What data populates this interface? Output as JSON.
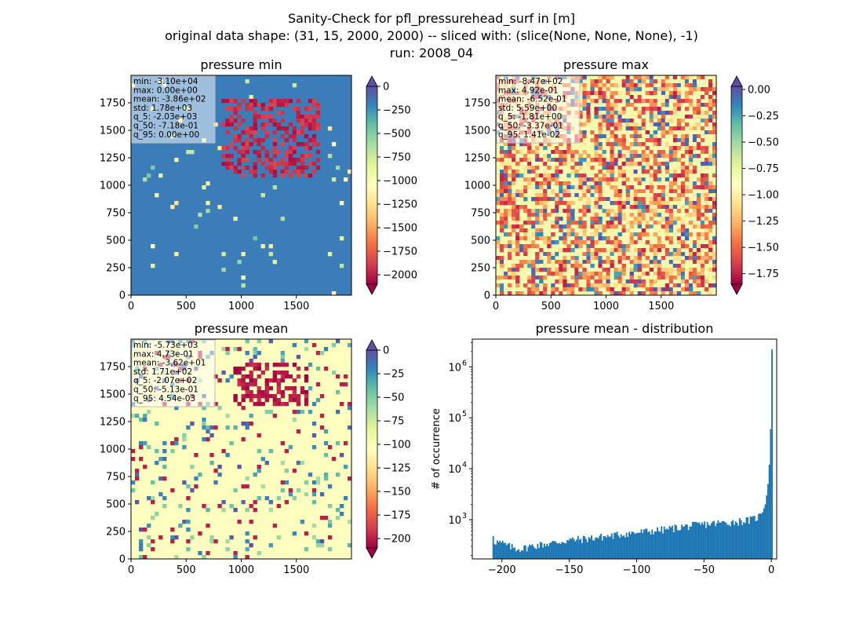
{
  "figure": {
    "title_lines": [
      "Sanity-Check for pfl_pressurehead_surf in [m]",
      "original data shape: (31, 15, 2000, 2000) -- sliced with: (slice(None, None, None), -1)",
      "run: 2008_04"
    ]
  },
  "chart_data": [
    {
      "type": "heatmap",
      "title": "pressure min",
      "colormap": "Spectral",
      "extent": [
        0,
        2000,
        0,
        2000
      ],
      "x_ticks": [
        0,
        500,
        1000,
        1500
      ],
      "y_ticks": [
        0,
        250,
        500,
        750,
        1000,
        1250,
        1500,
        1750
      ],
      "colorbar": {
        "range": [
          -2100,
          0
        ],
        "ticks": [
          0,
          -250,
          -500,
          -750,
          -1000,
          -1250,
          -1500,
          -1750,
          -2000
        ],
        "extend": "both"
      },
      "stats": [
        "min: -3.10e+04",
        "max: 0.00e+00",
        "mean: -3.86e+02",
        "std: 1.78e+03",
        "q_5: -2.03e+03",
        "q_50: -7.18e-01",
        "q_95: 0.00e+00"
      ]
    },
    {
      "type": "heatmap",
      "title": "pressure max",
      "colormap": "Spectral",
      "extent": [
        0,
        2000,
        0,
        2000
      ],
      "x_ticks": [
        0,
        500,
        1000,
        1500
      ],
      "y_ticks": [
        0,
        250,
        500,
        750,
        1000,
        1250,
        1500,
        1750
      ],
      "colorbar": {
        "range": [
          -1.85,
          0.03
        ],
        "ticks": [
          "0.00",
          "-0.25",
          "-0.50",
          "-0.75",
          "-1.00",
          "-1.25",
          "-1.50",
          "-1.75"
        ],
        "tick_values": [
          0,
          -0.25,
          -0.5,
          -0.75,
          -1.0,
          -1.25,
          -1.5,
          -1.75
        ],
        "extend": "both"
      },
      "stats": [
        "min: -8.47e+02",
        "max: 4.92e-01",
        "mean: -6.52e-01",
        "std: 5.59e+00",
        "q_5: -1.81e+00",
        "q_50: -3.37e-01",
        "q_95: 1.41e-02"
      ]
    },
    {
      "type": "heatmap",
      "title": "pressure mean",
      "colormap": "Spectral",
      "extent": [
        0,
        2000,
        0,
        2000
      ],
      "x_ticks": [
        0,
        500,
        1000,
        1500
      ],
      "y_ticks": [
        0,
        250,
        500,
        750,
        1000,
        1250,
        1500,
        1750
      ],
      "colorbar": {
        "range": [
          -210,
          0
        ],
        "ticks": [
          0,
          -25,
          -50,
          -75,
          -100,
          -125,
          -150,
          -175,
          -200
        ],
        "extend": "both"
      },
      "stats": [
        "min: -5.73e+03",
        "max: 4.73e-01",
        "mean: -3.62e+01",
        "std: 1.71e+02",
        "q_5: -2.07e+02",
        "q_50: -5.13e-01",
        "q_95: 4.54e-03"
      ]
    },
    {
      "type": "bar",
      "subtype": "histogram",
      "title": "pressure mean - distribution",
      "xlabel": "",
      "ylabel": "# of occurrence",
      "xlim": [
        -222,
        4
      ],
      "ylim": [
        170,
        3500000
      ],
      "yscale": "log",
      "x_ticks": [
        -200,
        -150,
        -100,
        -50,
        0
      ],
      "y_ticks": [
        1000,
        10000,
        100000,
        1000000
      ],
      "y_tick_labels": [
        "10",
        "10",
        "10",
        "10"
      ],
      "y_tick_exponents": [
        "3",
        "4",
        "5",
        "6"
      ],
      "bar_color": "#1f77b4",
      "bin_width": 1,
      "bins_start": -207,
      "anchors": [
        [
          -207,
          520
        ],
        [
          -206,
          380
        ],
        [
          -200,
          340
        ],
        [
          -195,
          300
        ],
        [
          -190,
          275
        ],
        [
          -185,
          270
        ],
        [
          -180,
          300
        ],
        [
          -170,
          330
        ],
        [
          -160,
          360
        ],
        [
          -150,
          400
        ],
        [
          -140,
          420
        ],
        [
          -130,
          450
        ],
        [
          -120,
          480
        ],
        [
          -110,
          530
        ],
        [
          -100,
          560
        ],
        [
          -90,
          600
        ],
        [
          -80,
          640
        ],
        [
          -70,
          710
        ],
        [
          -60,
          760
        ],
        [
          -50,
          820
        ],
        [
          -40,
          860
        ],
        [
          -30,
          900
        ],
        [
          -20,
          960
        ],
        [
          -15,
          1000
        ],
        [
          -10,
          1150
        ],
        [
          -7,
          1400
        ],
        [
          -5,
          2000
        ],
        [
          -4,
          3000
        ],
        [
          -3,
          5000
        ],
        [
          -2,
          12000
        ],
        [
          -1,
          60000
        ],
        [
          0,
          2200000
        ]
      ]
    }
  ]
}
